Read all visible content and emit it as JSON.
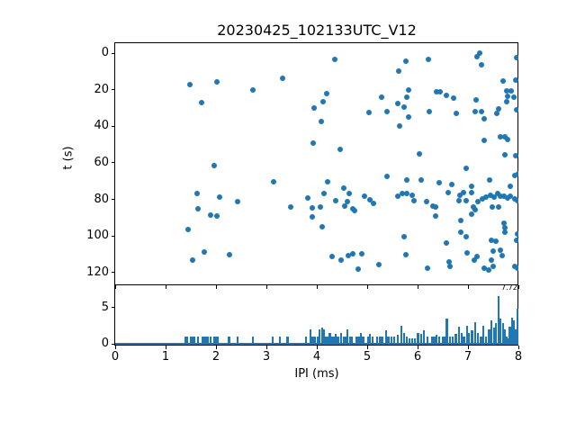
{
  "figure": {
    "title": "20230425_102133UTC_V12",
    "background": "#ffffff",
    "accent_color": "#1f77b4"
  },
  "chart_data": [
    {
      "type": "scatter",
      "title": "20230425_102133UTC_V12",
      "xlabel": "IPI (ms)",
      "ylabel": "t (s)",
      "xlim": [
        0,
        8
      ],
      "ylim": [
        127,
        -5
      ],
      "y_inverted": true,
      "x_ticks": [
        0,
        1,
        2,
        3,
        4,
        5,
        6,
        7,
        8
      ],
      "x_tick_labels_visible": false,
      "y_ticks": [
        0,
        20,
        40,
        60,
        80,
        100,
        120
      ],
      "grid": false,
      "legend": "none",
      "marker_color": "#1f77b4",
      "points": [
        [
          1.48,
          17.2
        ],
        [
          2.01,
          15.9
        ],
        [
          1.71,
          27.2
        ],
        [
          4.36,
          3.3
        ],
        [
          3.32,
          13.9
        ],
        [
          2.73,
          20.2
        ],
        [
          4.2,
          22.1
        ],
        [
          4.13,
          26.6
        ],
        [
          3.95,
          30.0
        ],
        [
          5.28,
          24.3
        ],
        [
          5.04,
          32.5
        ],
        [
          4.09,
          37.5
        ],
        [
          3.92,
          49.0
        ],
        [
          4.46,
          52.6
        ],
        [
          5.76,
          4.3
        ],
        [
          6.21,
          3.6
        ],
        [
          7.17,
          1.8
        ],
        [
          7.24,
          0.0
        ],
        [
          7.26,
          6.2
        ],
        [
          7.97,
          2.5
        ],
        [
          5.62,
          10.0
        ],
        [
          5.82,
          20.3
        ],
        [
          5.79,
          24.0
        ],
        [
          5.6,
          27.4
        ],
        [
          5.74,
          29.5
        ],
        [
          5.39,
          32.1
        ],
        [
          5.83,
          34.8
        ],
        [
          5.64,
          39.8
        ],
        [
          6.38,
          21.0
        ],
        [
          6.45,
          21.0
        ],
        [
          6.58,
          23.0
        ],
        [
          6.71,
          24.6
        ],
        [
          6.24,
          31.8
        ],
        [
          6.76,
          32.9
        ],
        [
          7.7,
          15.4
        ],
        [
          7.94,
          14.6
        ],
        [
          7.76,
          20.5
        ],
        [
          7.85,
          20.5
        ],
        [
          7.79,
          23.6
        ],
        [
          7.91,
          24.3
        ],
        [
          7.77,
          26.6
        ],
        [
          7.16,
          25.4
        ],
        [
          7.14,
          32.1
        ],
        [
          7.27,
          32.1
        ],
        [
          7.32,
          36.1
        ],
        [
          7.6,
          30.6
        ],
        [
          7.58,
          32.9
        ],
        [
          7.97,
          31.1
        ],
        [
          7.32,
          47.9
        ],
        [
          7.65,
          45.6
        ],
        [
          7.74,
          45.6
        ],
        [
          7.79,
          47.2
        ],
        [
          6.04,
          55.2
        ],
        [
          7.74,
          55.6
        ],
        [
          7.95,
          56.2
        ],
        [
          1.96,
          61.3
        ],
        [
          1.62,
          76.9
        ],
        [
          2.07,
          78.5
        ],
        [
          2.42,
          81.2
        ],
        [
          1.65,
          84.9
        ],
        [
          1.89,
          88.4
        ],
        [
          2.01,
          88.9
        ],
        [
          1.45,
          96.2
        ],
        [
          1.76,
          108.8
        ],
        [
          2.26,
          110.2
        ],
        [
          1.53,
          113.1
        ],
        [
          3.15,
          70.3
        ],
        [
          4.22,
          70.2
        ],
        [
          4.54,
          74.0
        ],
        [
          4.64,
          76.9
        ],
        [
          4.15,
          76.6
        ],
        [
          3.83,
          79.2
        ],
        [
          4.38,
          80.7
        ],
        [
          4.6,
          81.3
        ],
        [
          4.95,
          78.2
        ],
        [
          5.05,
          80.3
        ],
        [
          5.13,
          82.3
        ],
        [
          4.55,
          83.5
        ],
        [
          4.71,
          84.9
        ],
        [
          4.75,
          85.9
        ],
        [
          3.48,
          84.2
        ],
        [
          3.91,
          84.7
        ],
        [
          4.08,
          83.9
        ],
        [
          3.91,
          89.5
        ],
        [
          4.1,
          95.1
        ],
        [
          4.3,
          111.3
        ],
        [
          4.49,
          113.1
        ],
        [
          4.63,
          110.8
        ],
        [
          4.72,
          109.7
        ],
        [
          4.9,
          109.7
        ],
        [
          4.83,
          118.2
        ],
        [
          5.23,
          115.4
        ],
        [
          5.4,
          67.2
        ],
        [
          5.78,
          69.3
        ],
        [
          6.08,
          69.3
        ],
        [
          6.43,
          70.6
        ],
        [
          6.96,
          62.8
        ],
        [
          6.68,
          71.9
        ],
        [
          7.07,
          73.0
        ],
        [
          7.43,
          69.3
        ],
        [
          7.84,
          72.6
        ],
        [
          7.92,
          67.0
        ],
        [
          8.0,
          66.0
        ],
        [
          5.61,
          78.1
        ],
        [
          5.7,
          76.9
        ],
        [
          5.79,
          76.9
        ],
        [
          5.89,
          77.7
        ],
        [
          5.93,
          80.5
        ],
        [
          6.17,
          81.3
        ],
        [
          6.31,
          83.8
        ],
        [
          6.36,
          84.2
        ],
        [
          6.35,
          89.2
        ],
        [
          6.61,
          76.4
        ],
        [
          6.82,
          80.8
        ],
        [
          6.84,
          77.7
        ],
        [
          6.91,
          76.4
        ],
        [
          6.97,
          80.5
        ],
        [
          7.08,
          76.1
        ],
        [
          7.11,
          83.9
        ],
        [
          7.14,
          85.4
        ],
        [
          7.08,
          88.1
        ],
        [
          7.2,
          81.3
        ],
        [
          7.29,
          79.7
        ],
        [
          7.36,
          78.5
        ],
        [
          7.44,
          77.7
        ],
        [
          7.52,
          78.5
        ],
        [
          7.59,
          76.9
        ],
        [
          7.65,
          78.1
        ],
        [
          7.72,
          78.1
        ],
        [
          7.78,
          79.3
        ],
        [
          7.84,
          78.1
        ],
        [
          7.92,
          79.7
        ],
        [
          7.98,
          80.8
        ],
        [
          7.49,
          83.9
        ],
        [
          7.6,
          83.9
        ],
        [
          6.86,
          91.6
        ],
        [
          6.86,
          97.7
        ],
        [
          6.96,
          100.5
        ],
        [
          7.71,
          92.8
        ],
        [
          7.73,
          95.2
        ],
        [
          7.73,
          97.7
        ],
        [
          7.99,
          98.9
        ],
        [
          5.74,
          100.5
        ],
        [
          5.77,
          110.0
        ],
        [
          6.19,
          117.4
        ],
        [
          6.58,
          103.8
        ],
        [
          6.62,
          114.1
        ],
        [
          6.64,
          116.6
        ],
        [
          6.98,
          109.2
        ],
        [
          7.13,
          113.3
        ],
        [
          7.17,
          111.2
        ],
        [
          7.47,
          102.3
        ],
        [
          7.55,
          103.0
        ],
        [
          7.5,
          108.4
        ],
        [
          7.64,
          107.6
        ],
        [
          7.68,
          110.8
        ],
        [
          7.47,
          113.3
        ],
        [
          7.32,
          117.7
        ],
        [
          7.41,
          118.7
        ],
        [
          7.5,
          116.6
        ],
        [
          7.92,
          116.6
        ],
        [
          7.99,
          117.4
        ],
        [
          7.96,
          102.3
        ]
      ]
    },
    {
      "type": "bar",
      "xlabel": "IPI (ms)",
      "ylabel": "",
      "xlim": [
        0,
        8
      ],
      "ylim": [
        0,
        8.1
      ],
      "x_ticks": [
        0,
        1,
        2,
        3,
        4,
        5,
        6,
        7,
        8
      ],
      "y_ticks": [
        0,
        5
      ],
      "grid": false,
      "bar_color": "#1f77b4",
      "bin_width": 0.04,
      "annotation": {
        "text": "7.72",
        "x": 7.68,
        "y": 7.9
      },
      "bars": [
        [
          1.39,
          1
        ],
        [
          1.43,
          1
        ],
        [
          1.51,
          1
        ],
        [
          1.54,
          1
        ],
        [
          1.57,
          1
        ],
        [
          1.65,
          1
        ],
        [
          1.73,
          1
        ],
        [
          1.76,
          1
        ],
        [
          1.8,
          1
        ],
        [
          1.83,
          1
        ],
        [
          1.9,
          1
        ],
        [
          1.97,
          1
        ],
        [
          2.01,
          1
        ],
        [
          2.04,
          1
        ],
        [
          2.26,
          1
        ],
        [
          2.43,
          1
        ],
        [
          2.73,
          1
        ],
        [
          3.13,
          1
        ],
        [
          3.27,
          1
        ],
        [
          3.42,
          1
        ],
        [
          3.78,
          1
        ],
        [
          3.87,
          2
        ],
        [
          3.92,
          1
        ],
        [
          3.97,
          1
        ],
        [
          4.02,
          1
        ],
        [
          4.06,
          2
        ],
        [
          4.1,
          2.2
        ],
        [
          4.14,
          2
        ],
        [
          4.18,
          1
        ],
        [
          4.22,
          1
        ],
        [
          4.26,
          1.5
        ],
        [
          4.3,
          1
        ],
        [
          4.34,
          1
        ],
        [
          4.38,
          1.3
        ],
        [
          4.42,
          1
        ],
        [
          4.48,
          1.5
        ],
        [
          4.53,
          1
        ],
        [
          4.57,
          1
        ],
        [
          4.61,
          2
        ],
        [
          4.66,
          1
        ],
        [
          4.7,
          1
        ],
        [
          4.78,
          1
        ],
        [
          4.83,
          1
        ],
        [
          4.88,
          1.5
        ],
        [
          4.92,
          1
        ],
        [
          5.02,
          1
        ],
        [
          5.06,
          1.3
        ],
        [
          5.1,
          1
        ],
        [
          5.2,
          1
        ],
        [
          5.26,
          1
        ],
        [
          5.31,
          1
        ],
        [
          5.37,
          1.8
        ],
        [
          5.42,
          1
        ],
        [
          5.48,
          1
        ],
        [
          5.54,
          1
        ],
        [
          5.6,
          1.2
        ],
        [
          5.68,
          2.5
        ],
        [
          5.73,
          1.5
        ],
        [
          5.78,
          1
        ],
        [
          5.84,
          0.8
        ],
        [
          5.89,
          0.8
        ],
        [
          5.94,
          0.8
        ],
        [
          6.01,
          1.5
        ],
        [
          6.07,
          1.3
        ],
        [
          6.13,
          1.8
        ],
        [
          6.19,
          1
        ],
        [
          6.28,
          1
        ],
        [
          6.33,
          1
        ],
        [
          6.37,
          1.2
        ],
        [
          6.43,
          1
        ],
        [
          6.5,
          1
        ],
        [
          6.54,
          1
        ],
        [
          6.58,
          3.5
        ],
        [
          6.64,
          1
        ],
        [
          6.7,
          1
        ],
        [
          6.76,
          1.3
        ],
        [
          6.82,
          2.3
        ],
        [
          6.88,
          1.5
        ],
        [
          6.92,
          1
        ],
        [
          6.98,
          2.5
        ],
        [
          7.02,
          1.5
        ],
        [
          7.08,
          1.8
        ],
        [
          7.14,
          3
        ],
        [
          7.2,
          1.5
        ],
        [
          7.26,
          1
        ],
        [
          7.3,
          2.5
        ],
        [
          7.36,
          1
        ],
        [
          7.42,
          2
        ],
        [
          7.46,
          3.2
        ],
        [
          7.52,
          2.2
        ],
        [
          7.56,
          2.8
        ],
        [
          7.6,
          6.6
        ],
        [
          7.64,
          3.5
        ],
        [
          7.69,
          2.8
        ],
        [
          7.73,
          2
        ],
        [
          7.77,
          1
        ],
        [
          7.79,
          0.8
        ],
        [
          7.83,
          2.3
        ],
        [
          7.87,
          3.6
        ],
        [
          7.91,
          3.2
        ],
        [
          7.95,
          2
        ],
        [
          7.98,
          4.8
        ]
      ]
    }
  ]
}
